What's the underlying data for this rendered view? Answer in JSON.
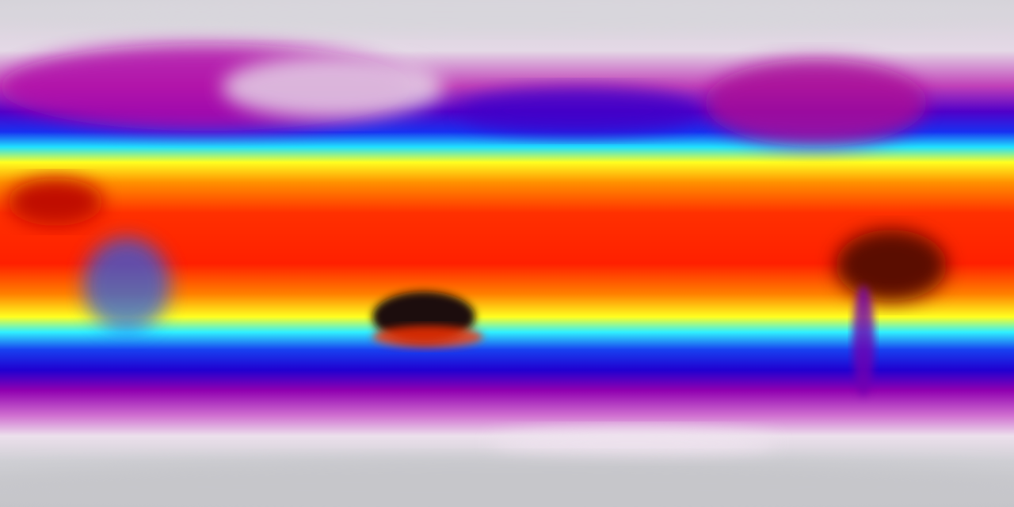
{
  "map": {
    "projection": "equirectangular",
    "variable_colormap": [
      "#d0d0d4",
      "#e8c8e8",
      "#b000a8",
      "#2000e0",
      "#00e8ff",
      "#ffff00",
      "#ff8000",
      "#ff1000",
      "#3a0000",
      "#101010"
    ],
    "colors": {
      "polar": "#c9c9ce",
      "subpolar": "#e6cde6",
      "cold": "#a000a0",
      "cool": "#1c10e0",
      "mild": "#20e8ff",
      "warm": "#ffff10",
      "hot": "#ff6000",
      "hotter": "#ff1800",
      "hottest": "#200808"
    }
  }
}
